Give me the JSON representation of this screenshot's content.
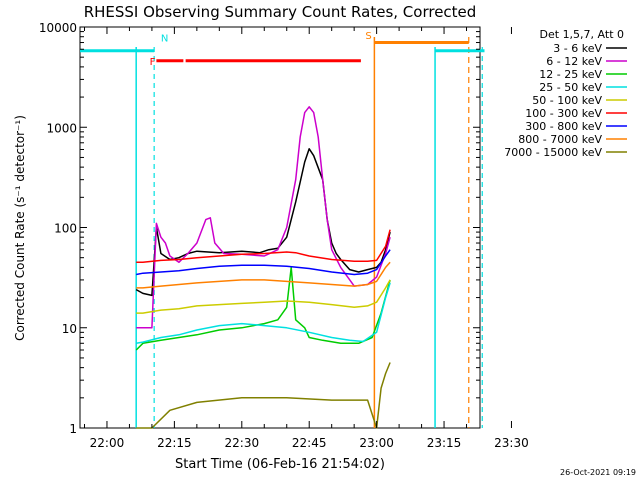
{
  "chart_data": {
    "type": "line",
    "title": "RHESSI Observing Summary Count Rates, Corrected",
    "xlabel": "Start Time (06-Feb-16 21:54:02)",
    "ylabel": "Corrected Count Rate (s⁻¹ detector⁻¹)",
    "ylog": true,
    "ylim": [
      1,
      10000
    ],
    "xlim_min": [
      -6,
      83
    ],
    "y_ticks": [
      {
        "v": 1,
        "label": "1"
      },
      {
        "v": 10,
        "label": "10"
      },
      {
        "v": 100,
        "label": "100"
      },
      {
        "v": 1000,
        "label": "1000"
      },
      {
        "v": 10000,
        "label": "10000"
      }
    ],
    "x_ticks": [
      {
        "t": 0,
        "label": "22:00"
      },
      {
        "t": 15,
        "label": "22:15"
      },
      {
        "t": 30,
        "label": "22:30"
      },
      {
        "t": 45,
        "label": "22:45"
      },
      {
        "t": 60,
        "label": "23:00"
      },
      {
        "t": 75,
        "label": "23:15"
      },
      {
        "t": 90,
        "label": "23:30"
      }
    ],
    "legend_header": "Det 1,5,7, Att 0",
    "series": [
      {
        "name": "3 - 6 keV",
        "color": "#000000",
        "points": [
          [
            6.5,
            24
          ],
          [
            8,
            22
          ],
          [
            10,
            21
          ],
          [
            11,
            100
          ],
          [
            12,
            55
          ],
          [
            14,
            48
          ],
          [
            16,
            50
          ],
          [
            18,
            55
          ],
          [
            20,
            58
          ],
          [
            25,
            56
          ],
          [
            30,
            58
          ],
          [
            34,
            56
          ],
          [
            36,
            60
          ],
          [
            38,
            62
          ],
          [
            40,
            80
          ],
          [
            42,
            180
          ],
          [
            44,
            450
          ],
          [
            45,
            610
          ],
          [
            46,
            520
          ],
          [
            48,
            300
          ],
          [
            49,
            120
          ],
          [
            50,
            70
          ],
          [
            51,
            55
          ],
          [
            52,
            48
          ],
          [
            54,
            38
          ],
          [
            56,
            36
          ],
          [
            58,
            38
          ],
          [
            60,
            40
          ],
          [
            61,
            45
          ],
          [
            62,
            60
          ],
          [
            63,
            90
          ]
        ]
      },
      {
        "name": "6 - 12 keV",
        "color": "#cc00cc",
        "points": [
          [
            6.5,
            10
          ],
          [
            8,
            10
          ],
          [
            10,
            10
          ],
          [
            11,
            110
          ],
          [
            12,
            80
          ],
          [
            13,
            70
          ],
          [
            14,
            52
          ],
          [
            16,
            45
          ],
          [
            18,
            55
          ],
          [
            20,
            70
          ],
          [
            22,
            120
          ],
          [
            23,
            125
          ],
          [
            24,
            70
          ],
          [
            26,
            55
          ],
          [
            30,
            54
          ],
          [
            35,
            52
          ],
          [
            38,
            60
          ],
          [
            40,
            100
          ],
          [
            42,
            300
          ],
          [
            43,
            800
          ],
          [
            44,
            1400
          ],
          [
            45,
            1600
          ],
          [
            46,
            1400
          ],
          [
            47,
            800
          ],
          [
            48,
            300
          ],
          [
            49,
            120
          ],
          [
            50,
            60
          ],
          [
            52,
            40
          ],
          [
            55,
            26
          ],
          [
            58,
            27
          ],
          [
            60,
            32
          ],
          [
            62,
            55
          ],
          [
            63,
            80
          ]
        ]
      },
      {
        "name": "12 - 25 keV",
        "color": "#00cc00",
        "points": [
          [
            6.5,
            6
          ],
          [
            8,
            7
          ],
          [
            12,
            7.5
          ],
          [
            16,
            8
          ],
          [
            20,
            8.5
          ],
          [
            25,
            9.5
          ],
          [
            30,
            10
          ],
          [
            35,
            11
          ],
          [
            38,
            12
          ],
          [
            40,
            16
          ],
          [
            41,
            40
          ],
          [
            42,
            12
          ],
          [
            44,
            10
          ],
          [
            45,
            8
          ],
          [
            48,
            7.5
          ],
          [
            52,
            7
          ],
          [
            56,
            7
          ],
          [
            59,
            8
          ],
          [
            61,
            14
          ],
          [
            63,
            30
          ]
        ]
      },
      {
        "name": "25 - 50 keV",
        "color": "#00e0e0",
        "points": [
          [
            6.5,
            7
          ],
          [
            8,
            7.2
          ],
          [
            12,
            8
          ],
          [
            16,
            8.5
          ],
          [
            20,
            9.5
          ],
          [
            25,
            10.5
          ],
          [
            30,
            11
          ],
          [
            35,
            10.5
          ],
          [
            40,
            10
          ],
          [
            45,
            9
          ],
          [
            50,
            8
          ],
          [
            54,
            7.5
          ],
          [
            57,
            7.3
          ],
          [
            60,
            9
          ],
          [
            62,
            20
          ],
          [
            63,
            28
          ]
        ]
      },
      {
        "name": "50 - 100 keV",
        "color": "#cccc00",
        "points": [
          [
            6.5,
            14
          ],
          [
            8,
            14
          ],
          [
            12,
            15
          ],
          [
            16,
            15.5
          ],
          [
            20,
            16.5
          ],
          [
            25,
            17
          ],
          [
            30,
            17.5
          ],
          [
            35,
            18
          ],
          [
            40,
            18.5
          ],
          [
            45,
            18
          ],
          [
            50,
            17
          ],
          [
            55,
            16
          ],
          [
            58,
            16.5
          ],
          [
            60,
            18
          ],
          [
            62,
            25
          ],
          [
            63,
            30
          ]
        ]
      },
      {
        "name": "100 - 300 keV",
        "color": "#ff0000",
        "points": [
          [
            6.5,
            45
          ],
          [
            8,
            45
          ],
          [
            12,
            47
          ],
          [
            16,
            48
          ],
          [
            20,
            50
          ],
          [
            25,
            52
          ],
          [
            30,
            54
          ],
          [
            35,
            55
          ],
          [
            40,
            57
          ],
          [
            42,
            56
          ],
          [
            45,
            52
          ],
          [
            50,
            48
          ],
          [
            55,
            46
          ],
          [
            58,
            46
          ],
          [
            60,
            47
          ],
          [
            62,
            65
          ],
          [
            63,
            95
          ]
        ]
      },
      {
        "name": "300 - 800 keV",
        "color": "#0000ff",
        "points": [
          [
            6.5,
            34
          ],
          [
            8,
            35
          ],
          [
            12,
            36
          ],
          [
            16,
            37
          ],
          [
            20,
            39
          ],
          [
            25,
            41
          ],
          [
            30,
            42
          ],
          [
            35,
            42
          ],
          [
            40,
            41
          ],
          [
            45,
            39
          ],
          [
            50,
            36
          ],
          [
            55,
            34
          ],
          [
            58,
            35
          ],
          [
            60,
            38
          ],
          [
            62,
            52
          ],
          [
            63,
            60
          ]
        ]
      },
      {
        "name": "800 - 7000 keV",
        "color": "#ff8000",
        "points": [
          [
            6.5,
            25
          ],
          [
            8,
            25
          ],
          [
            12,
            26
          ],
          [
            16,
            27
          ],
          [
            20,
            28
          ],
          [
            25,
            29
          ],
          [
            30,
            30
          ],
          [
            35,
            30
          ],
          [
            40,
            29
          ],
          [
            45,
            28
          ],
          [
            50,
            27
          ],
          [
            55,
            26
          ],
          [
            58,
            27
          ],
          [
            60,
            29
          ],
          [
            62,
            40
          ],
          [
            63,
            45
          ]
        ]
      },
      {
        "name": "7000 - 15000 keV",
        "color": "#808000",
        "points": [
          [
            6.5,
            1
          ],
          [
            10,
            1
          ],
          [
            14,
            1.5
          ],
          [
            20,
            1.8
          ],
          [
            30,
            2.0
          ],
          [
            40,
            2.0
          ],
          [
            50,
            1.9
          ],
          [
            58,
            1.9
          ],
          [
            60,
            1
          ],
          [
            61,
            2.5
          ],
          [
            62,
            3.5
          ],
          [
            63,
            4.5
          ]
        ]
      }
    ],
    "flags": [
      {
        "label": "N",
        "color": "#00e0e0"
      },
      {
        "label": "F",
        "color": "#ff0000"
      },
      {
        "label": "S",
        "color": "#ff8000"
      }
    ],
    "footer_date": "26-Oct-2021 09:19"
  }
}
